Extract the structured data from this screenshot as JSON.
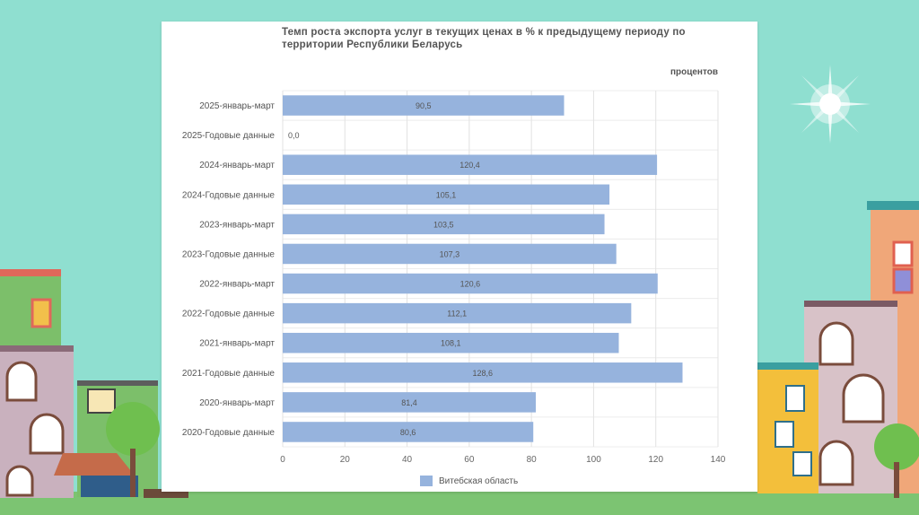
{
  "chart_data": {
    "type": "bar",
    "orientation": "horizontal",
    "title": "Темп роста экспорта услуг в текущих ценах в % к предыдущему периоду по территории Республики Беларусь",
    "unit_label": "процентов",
    "categories": [
      "2025-январь-март",
      "2025-Годовые данные",
      "2024-январь-март",
      "2024-Годовые данные",
      "2023-январь-март",
      "2023-Годовые данные",
      "2022-январь-март",
      "2022-Годовые данные",
      "2021-январь-март",
      "2021-Годовые данные",
      "2020-январь-март",
      "2020-Годовые данные"
    ],
    "series": [
      {
        "name": "Витебская область",
        "color": "#96b3dd",
        "values": [
          90.5,
          0.0,
          120.4,
          105.1,
          103.5,
          107.3,
          120.6,
          112.1,
          108.1,
          128.6,
          81.4,
          80.6
        ],
        "labels": [
          "90,5",
          "0,0",
          "120,4",
          "105,1",
          "103,5",
          "107,3",
          "120,6",
          "112,1",
          "108,1",
          "128,6",
          "81,4",
          "80,6"
        ]
      }
    ],
    "xlim": [
      0,
      140
    ],
    "xticks": [
      "0",
      "20",
      "40",
      "60",
      "80",
      "100",
      "120",
      "140"
    ],
    "grid": true,
    "legend_position": "bottom"
  }
}
